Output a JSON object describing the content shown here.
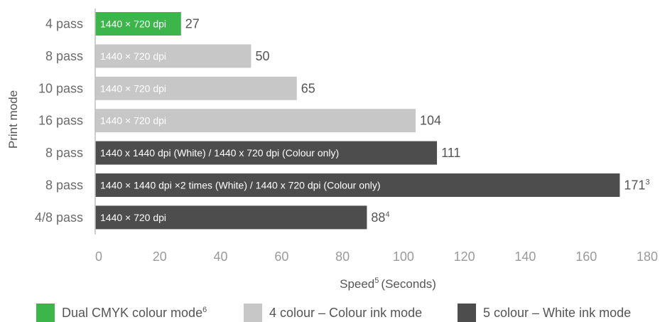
{
  "chart_data": {
    "type": "bar",
    "orientation": "horizontal",
    "ylabel": "Print mode",
    "xlabel": {
      "text": "Speed",
      "sup": "5",
      "suffix": "(Seconds)"
    },
    "xlim": [
      0,
      180
    ],
    "xticks": [
      0,
      20,
      40,
      60,
      80,
      100,
      120,
      140,
      160,
      180
    ],
    "grid": false,
    "legend_position": "bottom",
    "bars": [
      {
        "category": "4 pass",
        "value": 27,
        "value_label": "27",
        "sup": "",
        "text": "1440 × 720 dpi",
        "series": 0
      },
      {
        "category": "8 pass",
        "value": 50,
        "value_label": "50",
        "sup": "",
        "text": "1440 × 720 dpi",
        "series": 1
      },
      {
        "category": "10 pass",
        "value": 65,
        "value_label": "65",
        "sup": "",
        "text": "1440 × 720 dpi",
        "series": 1
      },
      {
        "category": "16 pass",
        "value": 104,
        "value_label": "104",
        "sup": "",
        "text": "1440 × 720 dpi",
        "series": 1
      },
      {
        "category": "8 pass",
        "value": 111,
        "value_label": "111",
        "sup": "",
        "text": "1440 x 1440 dpi (White) / 1440 x 720 dpi (Colour only)",
        "series": 2
      },
      {
        "category": "8 pass",
        "value": 171,
        "value_label": "171",
        "sup": "3",
        "text": "1440 × 1440 dpi ×2 times (White) / 1440 x 720 dpi (Colour only)",
        "series": 2
      },
      {
        "category": "4/8 pass",
        "value": 88,
        "value_label": "88",
        "sup": "4",
        "text": "1440 × 720 dpi",
        "series": 2
      }
    ],
    "series": [
      {
        "name": "Dual CMYK colour mode",
        "sup": "6",
        "color": "#3cb54a"
      },
      {
        "name": "4 colour – Colour ink mode",
        "sup": "",
        "color": "#c7c7c7"
      },
      {
        "name": "5 colour – White ink mode",
        "sup": "",
        "color": "#4d4d4d"
      }
    ]
  }
}
